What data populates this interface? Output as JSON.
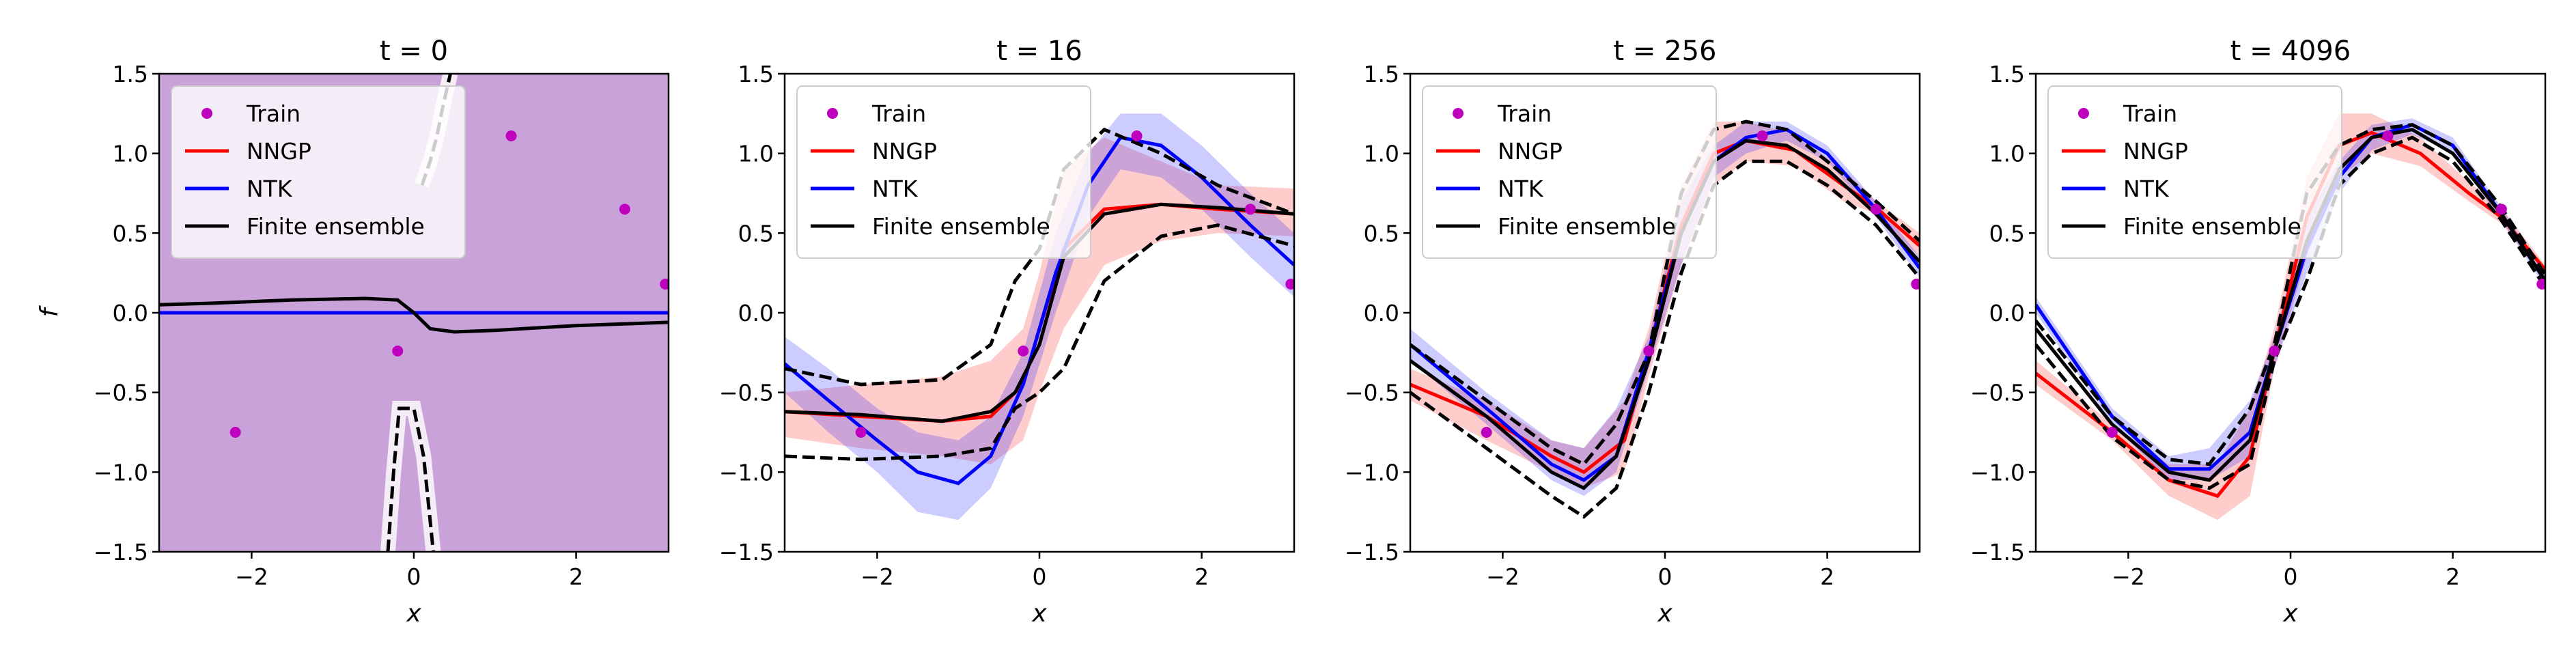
{
  "figure": {
    "panels": [
      {
        "title": "t = 0"
      },
      {
        "title": "t = 16"
      },
      {
        "title": "t = 256"
      },
      {
        "title": "t = 4096"
      }
    ],
    "ylabel": "f",
    "xlabel": "x",
    "legend": {
      "train": "Train",
      "nngp": "NNGP",
      "ntk": "NTK",
      "finite": "Finite ensemble"
    }
  },
  "chart_data": [
    {
      "type": "line",
      "title": "t = 0",
      "xlabel": "x",
      "ylabel": "f",
      "xlim": [
        -3.14,
        3.14
      ],
      "ylim": [
        -1.5,
        1.5
      ],
      "xticks": [
        -2,
        0,
        2
      ],
      "yticks": [
        -1.5,
        -1.0,
        -0.5,
        0.0,
        0.5,
        1.0,
        1.5
      ],
      "legend_position": "upper-left",
      "train": {
        "name": "Train",
        "x": [
          -2.2,
          -0.2,
          1.2,
          2.6,
          3.1
        ],
        "y": [
          -0.75,
          -0.24,
          1.11,
          0.65,
          0.18
        ]
      },
      "nngp": {
        "name": "NNGP",
        "x": [
          -3.14,
          3.14
        ],
        "y": [
          0.0,
          0.0
        ],
        "band": "full range (-1.5 to 1.5)"
      },
      "ntk": {
        "name": "NTK",
        "x": [
          -3.14,
          3.14
        ],
        "y": [
          0.0,
          0.0
        ],
        "band": "full range (-1.5 to 1.5)"
      },
      "finite": {
        "name": "Finite ensemble",
        "x": [
          -3.14,
          -2.5,
          -1.5,
          -0.6,
          -0.2,
          0.0,
          0.2,
          0.5,
          1.0,
          2.0,
          3.14
        ],
        "y": [
          0.05,
          0.06,
          0.08,
          0.09,
          0.08,
          0.0,
          -0.1,
          -0.12,
          -0.11,
          -0.08,
          -0.06
        ],
        "upper": {
          "x": [
            0.1,
            0.2,
            0.28,
            0.36,
            0.45
          ],
          "y": [
            0.8,
            0.95,
            1.1,
            1.3,
            1.5
          ]
        },
        "lower": {
          "x": [
            -0.32,
            -0.25,
            -0.18,
            0.0,
            0.12,
            0.18,
            0.24
          ],
          "y": [
            -1.5,
            -1.0,
            -0.6,
            -0.6,
            -0.9,
            -1.2,
            -1.5
          ]
        }
      }
    },
    {
      "type": "line",
      "title": "t = 16",
      "xlabel": "x",
      "xlim": [
        -3.14,
        3.14
      ],
      "ylim": [
        -1.5,
        1.5
      ],
      "xticks": [
        -2,
        0,
        2
      ],
      "yticks": [
        -1.5,
        -1.0,
        -0.5,
        0.0,
        0.5,
        1.0,
        1.5
      ],
      "legend_position": "upper-left",
      "train": {
        "name": "Train",
        "x": [
          -2.2,
          -0.2,
          1.2,
          2.6,
          3.1
        ],
        "y": [
          -0.75,
          -0.24,
          1.11,
          0.65,
          0.18
        ]
      },
      "nngp": {
        "name": "NNGP",
        "x": [
          -3.14,
          -2.2,
          -1.2,
          -0.6,
          -0.2,
          0.0,
          0.3,
          0.8,
          1.5,
          2.2,
          3.14
        ],
        "y": [
          -0.62,
          -0.65,
          -0.68,
          -0.65,
          -0.45,
          -0.1,
          0.4,
          0.65,
          0.68,
          0.65,
          0.62
        ],
        "band_upper": [
          -0.5,
          -0.45,
          -0.4,
          -0.3,
          -0.1,
          0.25,
          0.9,
          1.1,
          0.95,
          0.8,
          0.78
        ],
        "band_lower": [
          -0.78,
          -0.85,
          -0.9,
          -0.95,
          -0.8,
          -0.5,
          -0.1,
          0.3,
          0.45,
          0.5,
          0.48
        ]
      },
      "ntk": {
        "name": "NTK",
        "x": [
          -3.14,
          -2.6,
          -2.0,
          -1.5,
          -1.0,
          -0.6,
          -0.2,
          0.2,
          0.6,
          1.0,
          1.5,
          2.0,
          2.6,
          3.14
        ],
        "y": [
          -0.32,
          -0.55,
          -0.8,
          -1.0,
          -1.07,
          -0.9,
          -0.45,
          0.25,
          0.8,
          1.1,
          1.05,
          0.85,
          0.55,
          0.3
        ],
        "band_upper": [
          -0.15,
          -0.35,
          -0.6,
          -0.75,
          -0.8,
          -0.65,
          -0.25,
          0.5,
          1.0,
          1.25,
          1.25,
          1.05,
          0.75,
          0.5
        ],
        "band_lower": [
          -0.5,
          -0.75,
          -1.0,
          -1.25,
          -1.3,
          -1.1,
          -0.65,
          0.0,
          0.6,
          0.9,
          0.85,
          0.65,
          0.35,
          0.1
        ]
      },
      "finite": {
        "name": "Finite ensemble",
        "x": [
          -3.14,
          -2.2,
          -1.2,
          -0.6,
          -0.3,
          0.0,
          0.3,
          0.8,
          1.5,
          2.2,
          3.14
        ],
        "y": [
          -0.62,
          -0.64,
          -0.68,
          -0.62,
          -0.5,
          -0.2,
          0.35,
          0.62,
          0.68,
          0.66,
          0.62
        ],
        "upper": [
          -0.35,
          -0.45,
          -0.42,
          -0.2,
          0.2,
          0.4,
          0.9,
          1.15,
          1.0,
          0.8,
          0.62
        ],
        "lower": [
          -0.9,
          -0.92,
          -0.9,
          -0.85,
          -0.6,
          -0.5,
          -0.35,
          0.2,
          0.48,
          0.55,
          0.42
        ]
      }
    },
    {
      "type": "line",
      "title": "t = 256",
      "xlabel": "x",
      "xlim": [
        -3.14,
        3.14
      ],
      "ylim": [
        -1.5,
        1.5
      ],
      "xticks": [
        -2,
        0,
        2
      ],
      "yticks": [
        -1.5,
        -1.0,
        -0.5,
        0.0,
        0.5,
        1.0,
        1.5
      ],
      "legend_position": "upper-left",
      "train": {
        "name": "Train",
        "x": [
          -2.2,
          -0.2,
          1.2,
          2.6,
          3.1
        ],
        "y": [
          -0.75,
          -0.24,
          1.11,
          0.65,
          0.18
        ]
      },
      "nngp": {
        "name": "NNGP",
        "x": [
          -3.14,
          -2.2,
          -1.4,
          -1.0,
          -0.5,
          -0.2,
          0.2,
          0.6,
          1.0,
          1.6,
          2.2,
          2.6,
          3.14
        ],
        "y": [
          -0.45,
          -0.65,
          -0.9,
          -1.0,
          -0.8,
          -0.24,
          0.55,
          1.0,
          1.08,
          1.02,
          0.8,
          0.66,
          0.42
        ],
        "band_upper": [
          -0.35,
          -0.55,
          -0.8,
          -0.85,
          -0.55,
          -0.1,
          0.8,
          1.2,
          1.2,
          1.12,
          0.9,
          0.7,
          0.5
        ],
        "band_lower": [
          -0.55,
          -0.8,
          -1.0,
          -1.1,
          -1.0,
          -0.4,
          0.3,
          0.8,
          0.95,
          0.92,
          0.7,
          0.62,
          0.35
        ]
      },
      "ntk": {
        "name": "NTK",
        "x": [
          -3.14,
          -2.2,
          -1.4,
          -1.0,
          -0.6,
          -0.2,
          0.2,
          0.6,
          1.0,
          1.5,
          2.0,
          2.6,
          3.14
        ],
        "y": [
          -0.2,
          -0.6,
          -0.95,
          -1.05,
          -0.9,
          -0.24,
          0.5,
          0.95,
          1.1,
          1.15,
          1.0,
          0.65,
          0.28
        ],
        "band_upper": [
          -0.1,
          -0.5,
          -0.8,
          -0.85,
          -0.6,
          -0.15,
          0.7,
          1.05,
          1.2,
          1.2,
          1.05,
          0.7,
          0.35
        ],
        "band_lower": [
          -0.3,
          -0.7,
          -1.05,
          -1.15,
          -1.0,
          -0.35,
          0.3,
          0.85,
          1.0,
          1.08,
          0.95,
          0.6,
          0.22
        ]
      },
      "finite": {
        "name": "Finite ensemble",
        "x": [
          -3.14,
          -2.2,
          -1.4,
          -1.0,
          -0.6,
          -0.2,
          0.2,
          0.6,
          1.0,
          1.5,
          2.0,
          2.6,
          3.14
        ],
        "y": [
          -0.3,
          -0.65,
          -1.0,
          -1.1,
          -0.9,
          -0.3,
          0.5,
          0.95,
          1.08,
          1.05,
          0.9,
          0.62,
          0.32
        ],
        "upper": [
          -0.2,
          -0.55,
          -0.85,
          -0.95,
          -0.7,
          -0.25,
          0.75,
          1.15,
          1.2,
          1.15,
          0.95,
          0.7,
          0.45
        ],
        "lower": [
          -0.5,
          -0.85,
          -1.15,
          -1.28,
          -1.1,
          -0.5,
          0.25,
          0.8,
          0.95,
          0.95,
          0.8,
          0.55,
          0.22
        ]
      }
    },
    {
      "type": "line",
      "title": "t = 4096",
      "xlabel": "x",
      "xlim": [
        -3.14,
        3.14
      ],
      "ylim": [
        -1.5,
        1.5
      ],
      "xticks": [
        -2,
        0,
        2
      ],
      "yticks": [
        -1.5,
        -1.0,
        -0.5,
        0.0,
        0.5,
        1.0,
        1.5
      ],
      "legend_position": "upper-left",
      "train": {
        "name": "Train",
        "x": [
          -2.2,
          -0.2,
          1.2,
          2.6,
          3.1
        ],
        "y": [
          -0.75,
          -0.24,
          1.11,
          0.65,
          0.18
        ]
      },
      "nngp": {
        "name": "NNGP",
        "x": [
          -3.14,
          -2.2,
          -1.5,
          -0.9,
          -0.5,
          -0.2,
          0.2,
          0.6,
          1.0,
          1.6,
          2.2,
          2.6,
          3.14
        ],
        "y": [
          -0.38,
          -0.75,
          -1.05,
          -1.15,
          -0.9,
          -0.24,
          0.6,
          1.05,
          1.13,
          1.0,
          0.75,
          0.6,
          0.27
        ],
        "band_upper": [
          -0.3,
          -0.7,
          -0.95,
          -0.95,
          -0.6,
          -0.1,
          0.85,
          1.25,
          1.25,
          1.1,
          0.82,
          0.66,
          0.3
        ],
        "band_lower": [
          -0.45,
          -0.8,
          -1.15,
          -1.3,
          -1.15,
          -0.35,
          0.35,
          0.85,
          1.0,
          0.92,
          0.7,
          0.56,
          0.22
        ]
      },
      "ntk": {
        "name": "NTK",
        "x": [
          -3.14,
          -2.2,
          -1.5,
          -1.0,
          -0.5,
          -0.2,
          0.2,
          0.6,
          1.0,
          1.5,
          2.0,
          2.6,
          3.14
        ],
        "y": [
          0.05,
          -0.65,
          -0.98,
          -0.98,
          -0.75,
          -0.24,
          0.4,
          0.85,
          1.1,
          1.18,
          1.05,
          0.62,
          0.2
        ],
        "band_upper": [
          0.1,
          -0.6,
          -0.9,
          -0.85,
          -0.55,
          -0.15,
          0.6,
          0.95,
          1.18,
          1.22,
          1.1,
          0.66,
          0.24
        ],
        "band_lower": [
          0.0,
          -0.7,
          -1.05,
          -1.05,
          -0.9,
          -0.35,
          0.25,
          0.75,
          1.02,
          1.12,
          1.0,
          0.58,
          0.16
        ]
      },
      "finite": {
        "name": "Finite ensemble",
        "x": [
          -3.14,
          -2.2,
          -1.5,
          -1.0,
          -0.5,
          -0.2,
          0.2,
          0.6,
          1.0,
          1.5,
          2.0,
          2.6,
          3.14
        ],
        "y": [
          -0.1,
          -0.7,
          -1.0,
          -1.05,
          -0.8,
          -0.24,
          0.45,
          0.9,
          1.1,
          1.15,
          1.0,
          0.62,
          0.2
        ],
        "upper": [
          -0.05,
          -0.65,
          -0.92,
          -0.95,
          -0.6,
          -0.2,
          0.75,
          1.05,
          1.15,
          1.18,
          1.05,
          0.66,
          0.24
        ],
        "lower": [
          -0.2,
          -0.78,
          -1.05,
          -1.1,
          -0.95,
          -0.3,
          0.2,
          0.8,
          1.0,
          1.1,
          0.95,
          0.58,
          0.16
        ]
      }
    }
  ]
}
